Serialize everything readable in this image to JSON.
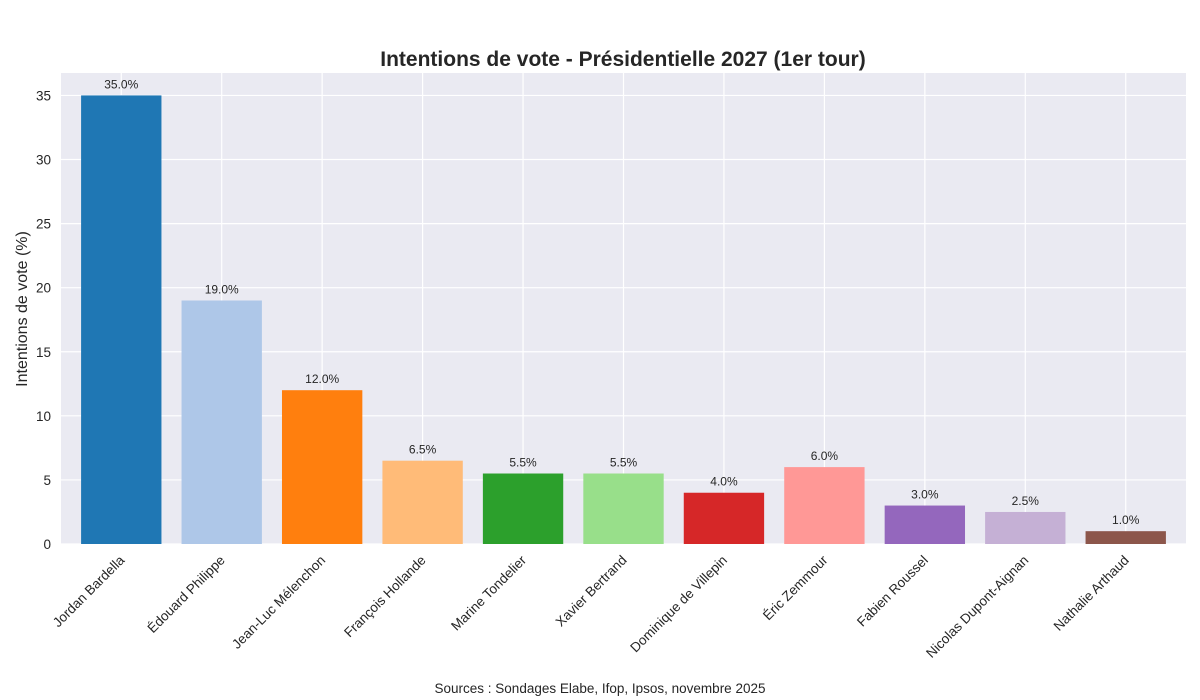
{
  "chart_data": {
    "type": "bar",
    "title": "Intentions de vote - Présidentielle 2027 (1er tour)",
    "xlabel": "",
    "ylabel": "Intentions de vote (%)",
    "ylim": [
      0,
      36.75
    ],
    "yticks": [
      0,
      5,
      10,
      15,
      20,
      25,
      30,
      35
    ],
    "grid": true,
    "legend": "none",
    "categories": [
      "Jordan Bardella",
      "Édouard Philippe",
      "Jean-Luc Mélenchon",
      "François Hollande",
      "Marine Tondelier",
      "Xavier Bertrand",
      "Dominique de Villepin",
      "Éric Zemmour",
      "Fabien Roussel",
      "Nicolas Dupont-Aignan",
      "Nathalie Arthaud"
    ],
    "values": [
      35.0,
      19.0,
      12.0,
      6.5,
      5.5,
      5.5,
      4.0,
      6.0,
      3.0,
      2.5,
      1.0
    ],
    "value_labels": [
      "35.0%",
      "19.0%",
      "12.0%",
      "6.5%",
      "5.5%",
      "5.5%",
      "4.0%",
      "6.0%",
      "3.0%",
      "2.5%",
      "1.0%"
    ],
    "colors": [
      "#1f77b4",
      "#aec7e8",
      "#ff7f0e",
      "#ffbb78",
      "#2ca02c",
      "#98df8a",
      "#d62728",
      "#ff9896",
      "#9467bd",
      "#c5b0d5",
      "#8c564b"
    ],
    "source": "Sources : Sondages Elabe, Ifop, Ipsos, novembre 2025"
  },
  "style": {
    "plot_background": "#eaeaf2",
    "grid_color": "#ffffff",
    "text_color": "#262626"
  }
}
